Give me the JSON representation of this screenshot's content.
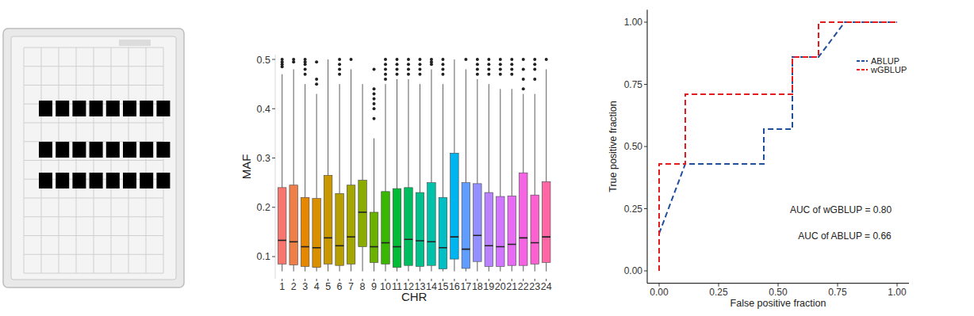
{
  "chart_data": [
    {
      "type": "box",
      "x_label": "CHR",
      "y_label": "MAF",
      "categories": [
        "1",
        "2",
        "3",
        "4",
        "5",
        "6",
        "7",
        "8",
        "9",
        "10",
        "11",
        "12",
        "13",
        "14",
        "15",
        "16",
        "17",
        "18",
        "19",
        "20",
        "21",
        "22",
        "23",
        "24"
      ],
      "lower_whisker": [
        0.07,
        0.07,
        0.07,
        0.07,
        0.07,
        0.07,
        0.07,
        0.07,
        0.07,
        0.07,
        0.07,
        0.07,
        0.07,
        0.07,
        0.07,
        0.07,
        0.07,
        0.07,
        0.07,
        0.07,
        0.07,
        0.07,
        0.07,
        0.07
      ],
      "q1": [
        0.085,
        0.083,
        0.08,
        0.078,
        0.085,
        0.082,
        0.085,
        0.12,
        0.088,
        0.085,
        0.078,
        0.082,
        0.08,
        0.082,
        0.075,
        0.095,
        0.076,
        0.09,
        0.08,
        0.08,
        0.082,
        0.082,
        0.085,
        0.088
      ],
      "median": [
        0.133,
        0.13,
        0.12,
        0.118,
        0.138,
        0.122,
        0.14,
        0.19,
        0.12,
        0.128,
        0.12,
        0.135,
        0.132,
        0.13,
        0.118,
        0.14,
        0.115,
        0.143,
        0.122,
        0.12,
        0.125,
        0.138,
        0.128,
        0.14
      ],
      "q3": [
        0.24,
        0.245,
        0.22,
        0.218,
        0.265,
        0.228,
        0.245,
        0.255,
        0.19,
        0.232,
        0.238,
        0.24,
        0.23,
        0.25,
        0.22,
        0.31,
        0.25,
        0.248,
        0.23,
        0.222,
        0.223,
        0.27,
        0.225,
        0.252
      ],
      "upper_whisker": [
        0.47,
        0.48,
        0.45,
        0.43,
        0.5,
        0.45,
        0.48,
        0.45,
        0.34,
        0.45,
        0.46,
        0.46,
        0.45,
        0.48,
        0.45,
        0.5,
        0.48,
        0.46,
        0.45,
        0.44,
        0.44,
        0.43,
        0.43,
        0.48
      ],
      "outliers": [
        [
          0.5,
          0.495,
          0.49,
          0.485
        ],
        [
          0.5,
          0.495
        ],
        [
          0.5,
          0.495,
          0.49,
          0.48,
          0.47
        ],
        [
          0.495,
          0.46,
          0.45
        ],
        [],
        [
          0.5,
          0.49,
          0.48,
          0.47
        ],
        [
          0.5
        ],
        [],
        [
          0.48,
          0.44,
          0.43,
          0.42,
          0.41,
          0.4,
          0.38
        ],
        [
          0.5,
          0.49,
          0.48,
          0.47,
          0.46
        ],
        [
          0.5,
          0.49,
          0.48,
          0.47
        ],
        [
          0.5,
          0.49,
          0.48,
          0.47
        ],
        [
          0.5,
          0.49,
          0.48,
          0.47
        ],
        [
          0.5,
          0.495,
          0.49
        ],
        [
          0.5,
          0.49,
          0.48,
          0.47
        ],
        [],
        [
          0.5
        ],
        [
          0.5,
          0.49,
          0.48,
          0.47
        ],
        [
          0.5,
          0.49,
          0.48,
          0.47
        ],
        [
          0.5,
          0.49,
          0.48,
          0.47
        ],
        [
          0.5,
          0.49,
          0.48,
          0.47
        ],
        [
          0.5,
          0.48,
          0.46,
          0.44
        ],
        [
          0.5,
          0.49,
          0.48,
          0.46
        ],
        [
          0.5
        ]
      ],
      "colors": [
        "#F8766D",
        "#EF7F49",
        "#E58700",
        "#D89000",
        "#C99800",
        "#B79F00",
        "#A3A500",
        "#8BAB00",
        "#6BB100",
        "#39B600",
        "#00BA38",
        "#00BD5F",
        "#00C08B",
        "#00C1A9",
        "#00BFC4",
        "#00B4F0",
        "#619CFF",
        "#9590FF",
        "#B983FF",
        "#D376FF",
        "#E76BF3",
        "#F564E3",
        "#FD61D1",
        "#FF67A4"
      ],
      "ylim": [
        0.055,
        0.51
      ],
      "yticks": [
        0.1,
        0.2,
        0.3,
        0.4,
        0.5
      ]
    },
    {
      "type": "line",
      "x_label": "False positive fraction",
      "y_label": "True positive fraction",
      "series": [
        {
          "name": "ABLUP",
          "color": "#1F4E9B",
          "line_style": "dashed",
          "x": [
            0,
            0.11,
            0.44,
            0.44,
            0.56,
            0.56,
            0.67,
            0.78,
            1
          ],
          "values": [
            0.15,
            0.43,
            0.43,
            0.57,
            0.57,
            0.86,
            0.86,
            1,
            1
          ]
        },
        {
          "name": "wGBLUP",
          "color": "#E41A1C",
          "line_style": "dashed",
          "x": [
            0,
            0,
            0.11,
            0.11,
            0.56,
            0.56,
            0.67,
            0.67,
            1
          ],
          "values": [
            0,
            0.43,
            0.43,
            0.71,
            0.71,
            0.86,
            0.86,
            1,
            1
          ]
        }
      ],
      "annotations": [
        "AUC of wGBLUP = 0.80",
        "AUC of ABLUP = 0.66"
      ],
      "xlim": [
        -0.05,
        1.05
      ],
      "ylim": [
        -0.05,
        1.05
      ],
      "xticks": [
        {
          "value": 0,
          "label": "0.00"
        },
        {
          "value": 0.25,
          "label": "0.25"
        },
        {
          "value": 0.5,
          "label": "0.50"
        },
        {
          "value": 0.75,
          "label": "0.75"
        },
        {
          "value": 1,
          "label": "1.00"
        }
      ],
      "yticks": [
        {
          "value": 0,
          "label": "0.00"
        },
        {
          "value": 0.25,
          "label": "0.25"
        },
        {
          "value": 0.5,
          "label": "0.50"
        },
        {
          "value": 0.75,
          "label": "0.75"
        },
        {
          "value": 1,
          "label": "1.00"
        }
      ],
      "legend": "right"
    }
  ]
}
